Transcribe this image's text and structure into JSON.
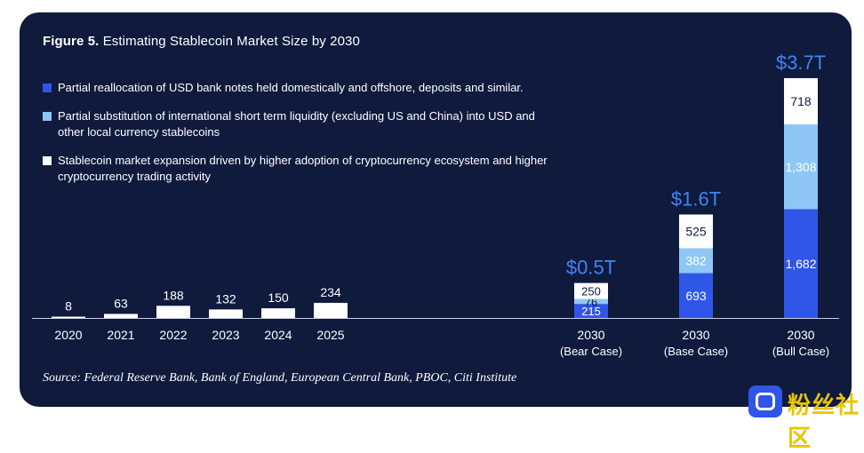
{
  "header": {
    "title_bold": "Figure 5.",
    "title_rest": " Estimating Stablecoin Market Size by 2030"
  },
  "legend": [
    {
      "label": "Partial reallocation of USD bank notes held domestically and offshore, deposits and similar.",
      "color": "#2f56e8"
    },
    {
      "label": "Partial substitution of international short term liquidity (excluding US and China) into USD and other local currency stablecoins",
      "color": "#8ec7f5"
    },
    {
      "label": "Stablecoin market expansion driven by higher adoption of cryptocurrency ecosystem and higher cryptocurrency trading activity",
      "color": "#ffffff"
    }
  ],
  "source": "Source: Federal Reserve Bank, Bank of England, European Central Bank, PBOC, Citi Institute",
  "watermark": "粉丝社区",
  "colors": {
    "background": "#0f1a3d",
    "accent_text": "#3d86f5",
    "blue": "#2f56e8",
    "light_blue": "#8ec7f5",
    "white": "#ffffff"
  },
  "chart_data": {
    "type": "bar",
    "stacked": true,
    "historical": {
      "categories": [
        "2020",
        "2021",
        "2022",
        "2023",
        "2024",
        "2025"
      ],
      "values": [
        8,
        63,
        188,
        132,
        150,
        234
      ]
    },
    "projections": [
      {
        "year": "2030",
        "case": "(Bear Case)",
        "total": "$0.5T",
        "segments": [
          215,
          76,
          250
        ]
      },
      {
        "year": "2030",
        "case": "(Base Case)",
        "total": "$1.6T",
        "segments": [
          693,
          382,
          525
        ]
      },
      {
        "year": "2030",
        "case": "(Bull Case)",
        "total": "$3.7T",
        "segments": [
          "1,682",
          "1,308",
          "718"
        ]
      }
    ],
    "segment_values": [
      [
        215,
        76,
        250
      ],
      [
        693,
        382,
        525
      ],
      [
        1682,
        1308,
        718
      ]
    ],
    "segment_colors": [
      "#2f56e8",
      "#8ec7f5",
      "#ffffff"
    ],
    "ylim": [
      0,
      3800
    ]
  }
}
